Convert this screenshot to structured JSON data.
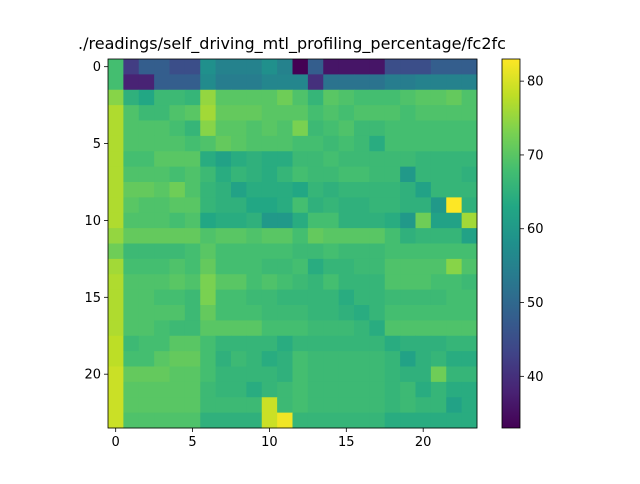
{
  "chart_data": {
    "type": "heatmap",
    "title": "./readings/self_driving_mtl_profiling_percentage/fc2fc",
    "xlabel": "",
    "ylabel": "",
    "colormap": "viridis",
    "vmin": 33,
    "vmax": 83,
    "rows": 24,
    "cols": 24,
    "x_ticks": [
      0,
      5,
      10,
      15,
      20
    ],
    "y_ticks": [
      0,
      5,
      10,
      15,
      20
    ],
    "x_tick_labels": [
      "0",
      "5",
      "10",
      "15",
      "20"
    ],
    "y_tick_labels": [
      "0",
      "5",
      "10",
      "15",
      "20"
    ],
    "colorbar_ticks": [
      40,
      50,
      60,
      70,
      80
    ],
    "colorbar_tick_labels": [
      "40",
      "50",
      "60",
      "70",
      "80"
    ],
    "grid": false,
    "values": [
      [
        68,
        42,
        48,
        48,
        45,
        45,
        58,
        55,
        55,
        55,
        58,
        55,
        33,
        48,
        36,
        36,
        36,
        36,
        45,
        45,
        45,
        48,
        48,
        48
      ],
      [
        68,
        38,
        38,
        48,
        48,
        48,
        57,
        54,
        54,
        54,
        56,
        56,
        56,
        40,
        52,
        52,
        52,
        52,
        54,
        54,
        55,
        55,
        55,
        55
      ],
      [
        74,
        65,
        63,
        67,
        67,
        66,
        75,
        70,
        70,
        70,
        70,
        72,
        69,
        66,
        70,
        69,
        68,
        68,
        68,
        69,
        70,
        70,
        71,
        69
      ],
      [
        77,
        69,
        67,
        67,
        69,
        70,
        76,
        71,
        71,
        71,
        70,
        70,
        70,
        68,
        69,
        68,
        69,
        69,
        69,
        68,
        69,
        69,
        69,
        69
      ],
      [
        77,
        69,
        69,
        69,
        68,
        66,
        74,
        70,
        70,
        69,
        70,
        69,
        73,
        67,
        68,
        69,
        67,
        67,
        68,
        68,
        68,
        68,
        68,
        68
      ],
      [
        77,
        69,
        69,
        69,
        69,
        68,
        69,
        71,
        70,
        69,
        69,
        69,
        68,
        68,
        67,
        68,
        67,
        64,
        68,
        68,
        68,
        68,
        68,
        68
      ],
      [
        77,
        68,
        68,
        70,
        70,
        70,
        64,
        62,
        64,
        65,
        64,
        64,
        67,
        67,
        68,
        67,
        67,
        67,
        67,
        67,
        66,
        66,
        66,
        66
      ],
      [
        77,
        69,
        69,
        69,
        68,
        69,
        67,
        64,
        66,
        65,
        64,
        66,
        68,
        67,
        67,
        68,
        68,
        67,
        67,
        60,
        66,
        66,
        66,
        65
      ],
      [
        77,
        71,
        71,
        70,
        72,
        69,
        66,
        65,
        62,
        64,
        64,
        64,
        63,
        66,
        65,
        66,
        66,
        66,
        66,
        65,
        62,
        66,
        66,
        66
      ],
      [
        77,
        70,
        69,
        69,
        70,
        70,
        66,
        65,
        65,
        63,
        63,
        64,
        68,
        65,
        66,
        65,
        65,
        66,
        66,
        65,
        65,
        60,
        83,
        65
      ],
      [
        77,
        69,
        69,
        69,
        68,
        69,
        63,
        64,
        64,
        65,
        60,
        60,
        64,
        68,
        68,
        65,
        65,
        65,
        64,
        60,
        72,
        62,
        62,
        76
      ],
      [
        75,
        71,
        71,
        71,
        71,
        71,
        69,
        70,
        70,
        69,
        70,
        70,
        68,
        71,
        70,
        70,
        70,
        70,
        68,
        65,
        66,
        66,
        66,
        62
      ],
      [
        72,
        67,
        67,
        67,
        67,
        68,
        70,
        68,
        68,
        68,
        68,
        68,
        67,
        67,
        68,
        67,
        67,
        67,
        68,
        68,
        68,
        68,
        68,
        68
      ],
      [
        76,
        68,
        68,
        68,
        69,
        68,
        71,
        68,
        68,
        68,
        67,
        67,
        68,
        64,
        66,
        66,
        67,
        67,
        69,
        69,
        69,
        69,
        74,
        69
      ],
      [
        77,
        69,
        69,
        69,
        70,
        69,
        73,
        70,
        70,
        68,
        69,
        68,
        67,
        66,
        68,
        66,
        66,
        66,
        69,
        69,
        69,
        68,
        68,
        67
      ],
      [
        77,
        69,
        69,
        68,
        68,
        67,
        73,
        68,
        68,
        67,
        67,
        66,
        66,
        66,
        66,
        64,
        66,
        66,
        67,
        67,
        67,
        67,
        68,
        68
      ],
      [
        77,
        69,
        69,
        69,
        69,
        67,
        71,
        68,
        68,
        68,
        67,
        67,
        67,
        66,
        66,
        65,
        64,
        66,
        68,
        68,
        68,
        68,
        68,
        68
      ],
      [
        77,
        69,
        69,
        68,
        67,
        67,
        70,
        70,
        70,
        70,
        68,
        68,
        68,
        67,
        67,
        67,
        66,
        64,
        69,
        69,
        69,
        69,
        69,
        69
      ],
      [
        78,
        67,
        68,
        68,
        70,
        70,
        68,
        66,
        66,
        66,
        66,
        64,
        66,
        66,
        66,
        66,
        66,
        66,
        64,
        65,
        65,
        65,
        66,
        66
      ],
      [
        78,
        68,
        68,
        70,
        71,
        71,
        68,
        65,
        67,
        66,
        64,
        65,
        68,
        67,
        67,
        67,
        67,
        67,
        66,
        62,
        65,
        66,
        64,
        64
      ],
      [
        79,
        71,
        71,
        71,
        70,
        70,
        68,
        66,
        66,
        66,
        66,
        65,
        68,
        67,
        67,
        67,
        67,
        67,
        66,
        65,
        65,
        72,
        66,
        66
      ],
      [
        79,
        70,
        70,
        70,
        70,
        70,
        67,
        66,
        66,
        64,
        66,
        67,
        68,
        67,
        67,
        67,
        67,
        67,
        66,
        67,
        64,
        66,
        64,
        64
      ],
      [
        79,
        70,
        70,
        70,
        70,
        70,
        67,
        67,
        67,
        67,
        79,
        67,
        68,
        67,
        67,
        67,
        67,
        67,
        66,
        67,
        66,
        66,
        62,
        64
      ],
      [
        79,
        69,
        69,
        69,
        69,
        69,
        65,
        65,
        65,
        65,
        79,
        82,
        66,
        66,
        66,
        66,
        66,
        66,
        64,
        64,
        64,
        64,
        64,
        64
      ]
    ]
  }
}
